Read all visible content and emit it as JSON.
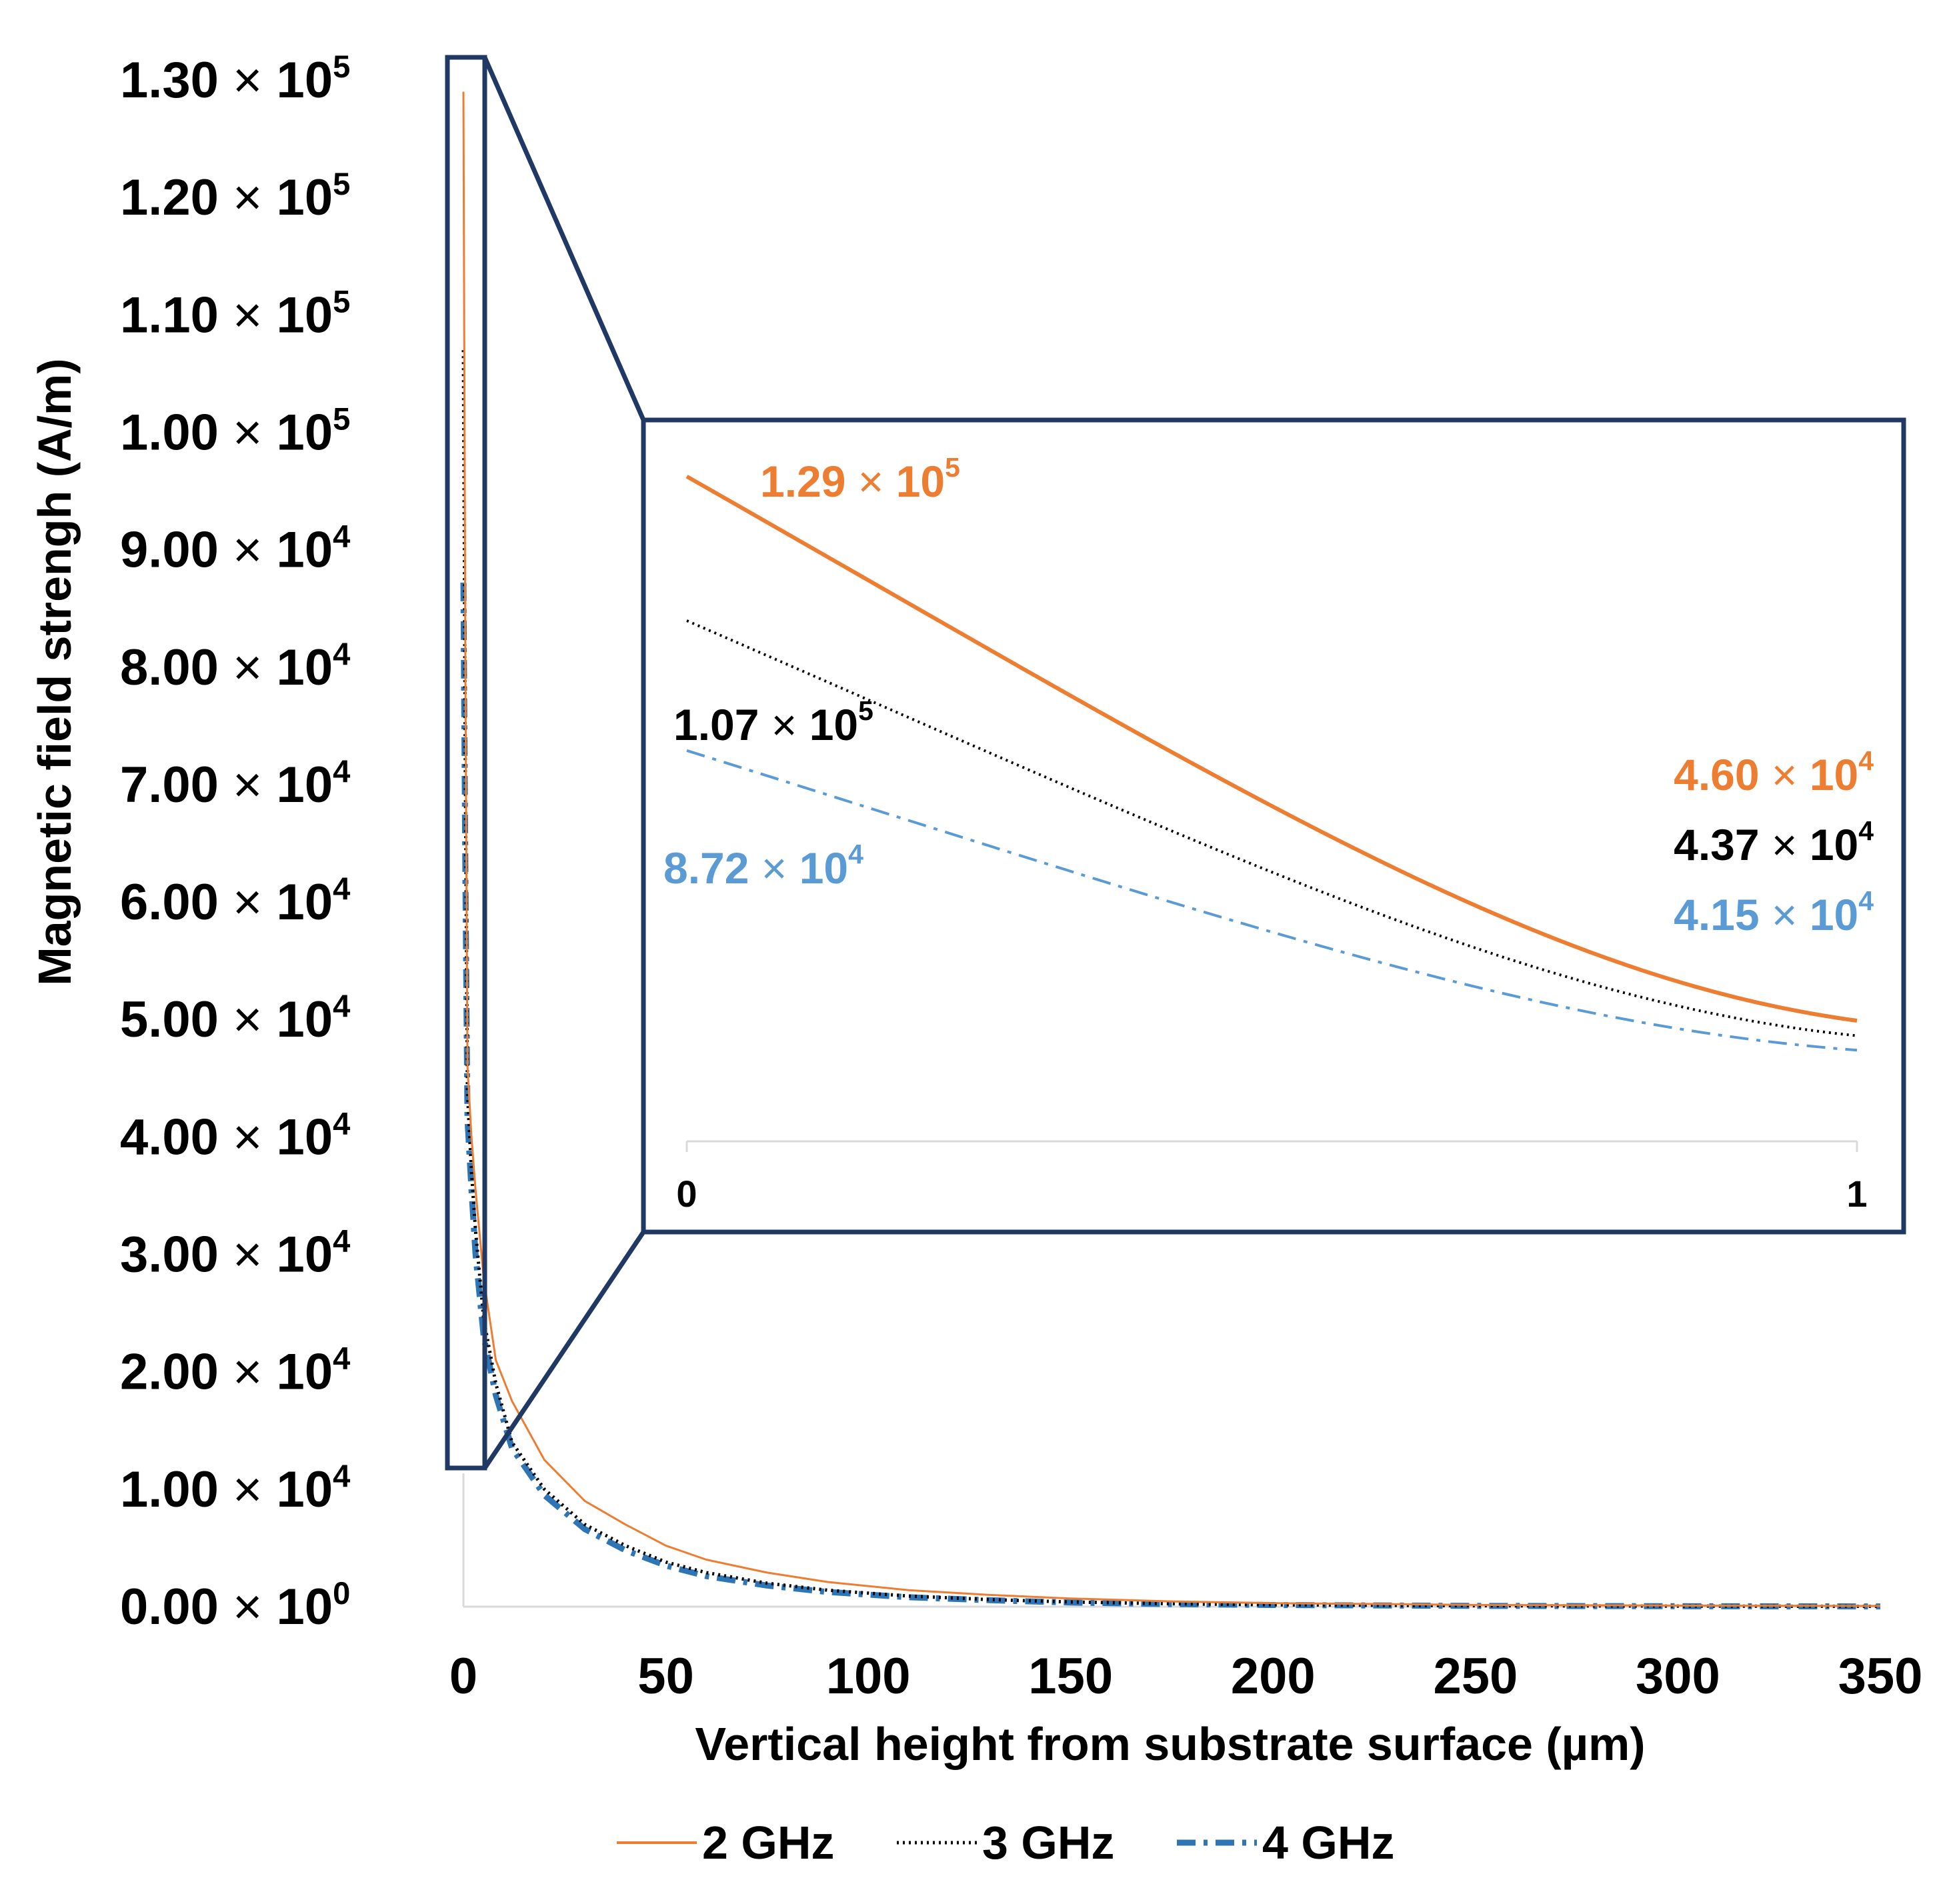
{
  "chart_data": {
    "type": "line",
    "title": "",
    "xlabel": "Vertical height from substrate surface (µm)",
    "ylabel": "Magnetic field strengh (A/m)",
    "xlim": [
      0,
      350
    ],
    "ylim": [
      0,
      130000
    ],
    "x_ticks": [
      "0",
      "50",
      "100",
      "150",
      "200",
      "250",
      "300",
      "350"
    ],
    "y_ticks": [
      {
        "mantissa": "0.00",
        "exp": "0"
      },
      {
        "mantissa": "1.00",
        "exp": "4"
      },
      {
        "mantissa": "2.00",
        "exp": "4"
      },
      {
        "mantissa": "3.00",
        "exp": "4"
      },
      {
        "mantissa": "4.00",
        "exp": "4"
      },
      {
        "mantissa": "5.00",
        "exp": "4"
      },
      {
        "mantissa": "6.00",
        "exp": "4"
      },
      {
        "mantissa": "7.00",
        "exp": "4"
      },
      {
        "mantissa": "8.00",
        "exp": "4"
      },
      {
        "mantissa": "9.00",
        "exp": "4"
      },
      {
        "mantissa": "1.00",
        "exp": "5"
      },
      {
        "mantissa": "1.10",
        "exp": "5"
      },
      {
        "mantissa": "1.20",
        "exp": "5"
      },
      {
        "mantissa": "1.30",
        "exp": "5"
      }
    ],
    "times_sign": "×",
    "exp_base": "10",
    "series": [
      {
        "name": "2 GHz",
        "color": "#ed7d31",
        "style": "solid",
        "x": [
          0,
          0.5,
          1,
          2,
          3,
          5,
          8,
          12,
          20,
          30,
          40,
          50,
          60,
          75,
          90,
          110,
          130,
          150,
          175,
          200,
          250,
          300,
          350
        ],
        "values": [
          129000,
          79000,
          46000,
          40000,
          35500,
          28000,
          21000,
          17500,
          12500,
          9000,
          7000,
          5200,
          4000,
          2900,
          2100,
          1400,
          1000,
          700,
          450,
          300,
          150,
          90,
          60
        ]
      },
      {
        "name": "3 GHz",
        "color": "#000000",
        "style": "dotted",
        "x": [
          0,
          0.5,
          1,
          2,
          3,
          5,
          8,
          12,
          20,
          30,
          40,
          50,
          60,
          75,
          90,
          110,
          130,
          150,
          175,
          200,
          250,
          300,
          350
        ],
        "values": [
          107000,
          70000,
          43700,
          37000,
          32000,
          24500,
          19000,
          14000,
          10000,
          7000,
          5200,
          3800,
          2900,
          2000,
          1400,
          900,
          600,
          400,
          250,
          160,
          80,
          50,
          30
        ]
      },
      {
        "name": "4 GHz",
        "color": "#2e75b6",
        "style": "dash-dot",
        "x": [
          0,
          0.5,
          1,
          2,
          3,
          5,
          8,
          12,
          20,
          30,
          40,
          50,
          60,
          75,
          90,
          110,
          130,
          150,
          175,
          200,
          250,
          300,
          350
        ],
        "values": [
          87200,
          62000,
          41500,
          35500,
          30000,
          23000,
          18000,
          13500,
          9500,
          6600,
          4800,
          3500,
          2600,
          1800,
          1250,
          800,
          550,
          350,
          220,
          140,
          70,
          40,
          25
        ]
      }
    ],
    "inset": {
      "xlim": [
        0,
        1
      ],
      "x_ticks": [
        "0",
        "1"
      ],
      "series_colors": [
        "#ed7d31",
        "#000000",
        "#5b9bd5"
      ],
      "annotations_left": [
        {
          "mantissa": "1.29",
          "exp": "5",
          "color": "#ed7d31"
        },
        {
          "mantissa": "1.07",
          "exp": "5",
          "color": "#000000"
        },
        {
          "mantissa": "8.72",
          "exp": "4",
          "color": "#5b9bd5"
        }
      ],
      "annotations_right": [
        {
          "mantissa": "4.60",
          "exp": "4",
          "color": "#ed7d31"
        },
        {
          "mantissa": "4.37",
          "exp": "4",
          "color": "#000000"
        },
        {
          "mantissa": "4.15",
          "exp": "4",
          "color": "#5b9bd5"
        }
      ],
      "values_at_0": [
        129000,
        107000,
        87200
      ],
      "values_at_1": [
        46000,
        43700,
        41500
      ]
    },
    "legend": {
      "placement": "bottom",
      "entries": [
        "2 GHz",
        "3 GHz",
        "4 GHz"
      ]
    },
    "frame_color": "#203864"
  }
}
